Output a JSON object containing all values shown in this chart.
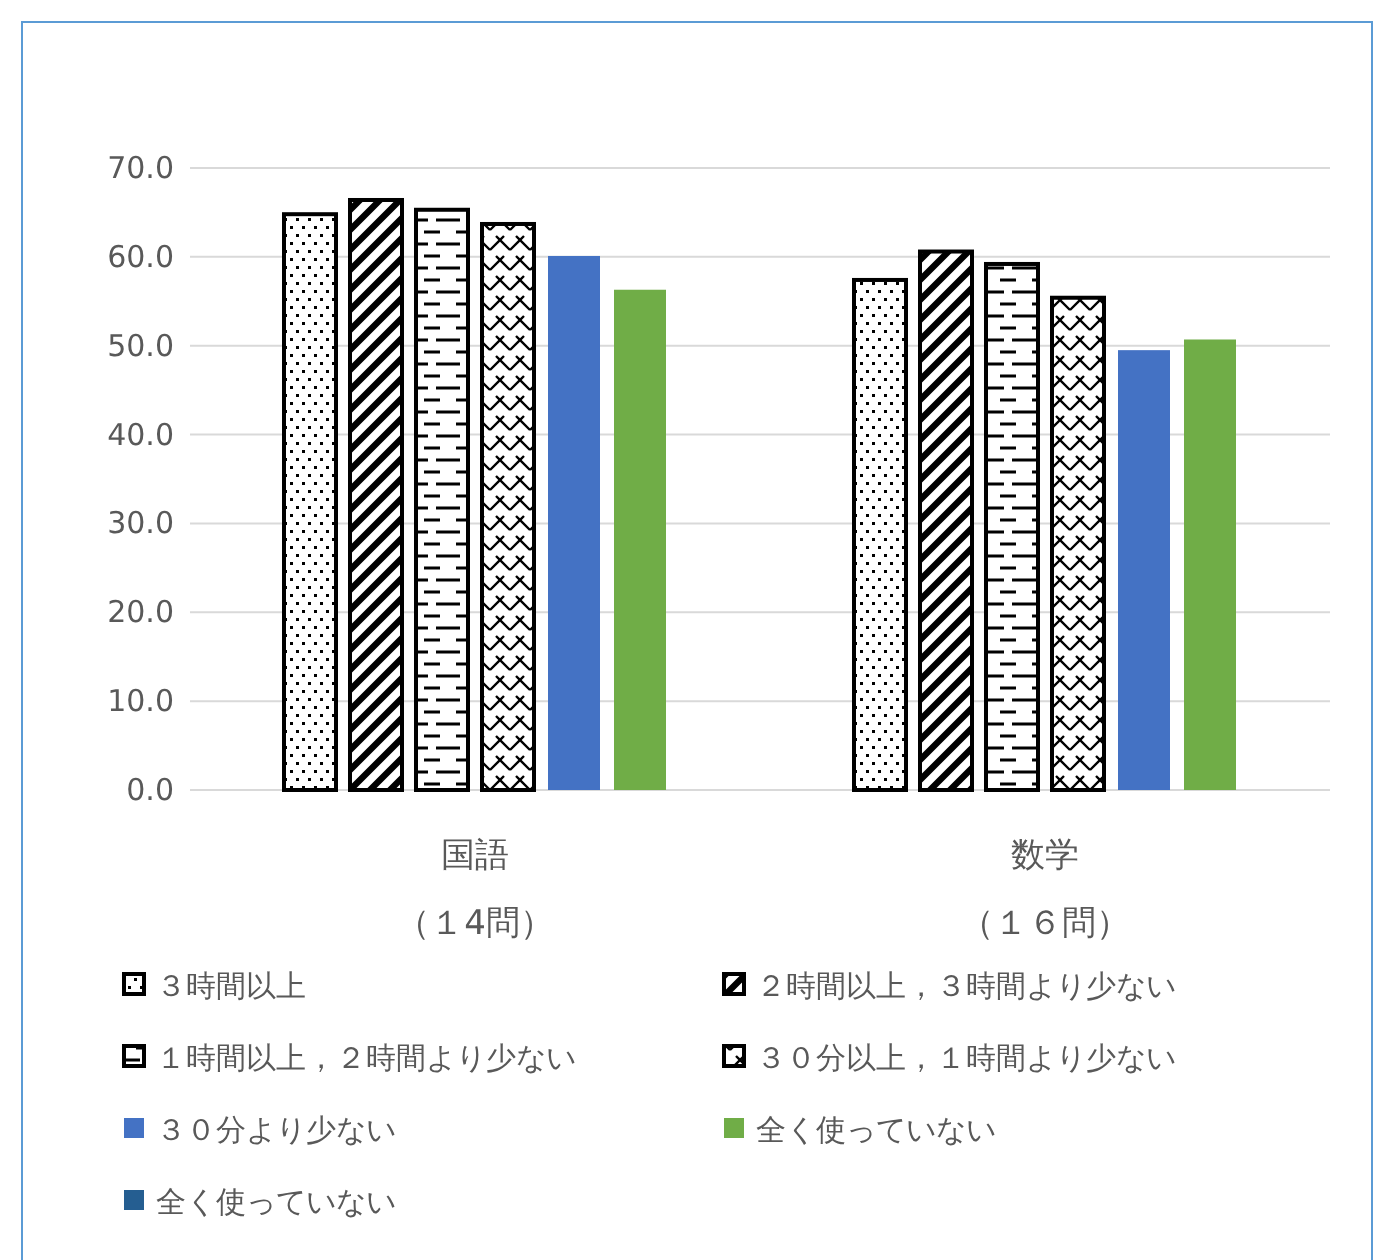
{
  "chart_data": {
    "type": "bar",
    "categories": [
      "国語（１4問）",
      "数学（１６問）"
    ],
    "series": [
      {
        "name": "３時間以上",
        "color": "#000000",
        "values": [
          64.8,
          57.4
        ]
      },
      {
        "name": "２時間以上，３時間より少ない",
        "color": "#000000",
        "values": [
          66.4,
          60.6
        ]
      },
      {
        "name": "１時間以上，２時間より少ない",
        "color": "#000000",
        "values": [
          65.3,
          59.2
        ]
      },
      {
        "name": "３０分以上，１時間より少ない",
        "color": "#000000",
        "values": [
          63.7,
          55.4
        ]
      },
      {
        "name": "３０分より少ない",
        "color": "#4472c4",
        "values": [
          60.1,
          49.5
        ]
      },
      {
        "name": "全く使っていない",
        "color": "#70ad47",
        "values": [
          56.3,
          50.7
        ]
      },
      {
        "name": "全く使っていない",
        "color": "#255e91",
        "values": [
          null,
          null
        ]
      }
    ],
    "ylim": [
      0,
      70
    ],
    "yticks": [
      {
        "value": 0,
        "label": "0.0"
      },
      {
        "value": 10,
        "label": "10.0"
      },
      {
        "value": 20,
        "label": "20.0"
      },
      {
        "value": 30,
        "label": "30.0"
      },
      {
        "value": 40,
        "label": "40.0"
      },
      {
        "value": 50,
        "label": "50.0"
      },
      {
        "value": 60,
        "label": "60.0"
      },
      {
        "value": 70,
        "label": "70.0"
      }
    ],
    "grid": "y",
    "legend": "bottom"
  }
}
